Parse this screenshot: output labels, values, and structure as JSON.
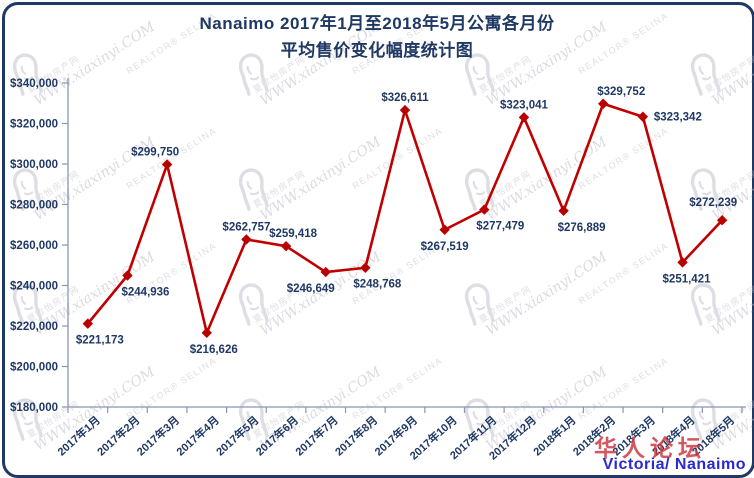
{
  "title": {
    "line1": "Nanaimo 2017年1月至2018年5月公寓各月份",
    "line2": "平均售价变化幅度统计图"
  },
  "chart_data": {
    "type": "line",
    "title": "Nanaimo 2017年1月至2018年5月公寓各月份 平均售价变化幅度统计图",
    "xlabel": "",
    "ylabel": "",
    "ylim": [
      180000,
      340000
    ],
    "y_tick_step": 20000,
    "y_tick_labels": [
      "$340,000",
      "$320,000",
      "$300,000",
      "$280,000",
      "$260,000",
      "$240,000",
      "$220,000",
      "$200,000",
      "$180,000"
    ],
    "grid": false,
    "legend_position": "none",
    "series_name": "平均售价",
    "categories": [
      "2017年1月",
      "2017年2月",
      "2017年3月",
      "2017年4月",
      "2017年5月",
      "2017年6月",
      "2017年7月",
      "2017年8月",
      "2017年9月",
      "2017年10月",
      "2017年11月",
      "2017年12月",
      "2018年1月",
      "2018年2月",
      "2018年3月",
      "2018年4月",
      "2018年5月"
    ],
    "values": [
      221173,
      244936,
      299750,
      216626,
      262757,
      259418,
      246649,
      248768,
      326611,
      267519,
      277479,
      323041,
      276889,
      329752,
      323342,
      251421,
      272239
    ],
    "point_labels": [
      "$221,173",
      "$244,936",
      "$299,750",
      "$216,626",
      "$262,757",
      "$259,418",
      "$246,649",
      "$248,768",
      "$326,611",
      "$267,519",
      "$277,479",
      "$323,041",
      "$276,889",
      "$329,752",
      "$323,342",
      "$251,421",
      "$272,239"
    ],
    "label_layout": [
      {
        "pos": "below",
        "dx": 12
      },
      {
        "pos": "below",
        "dx": 18
      },
      {
        "pos": "above",
        "dx": -12
      },
      {
        "pos": "below",
        "dx": 7
      },
      {
        "pos": "above",
        "dx": 0
      },
      {
        "pos": "above",
        "dx": 7
      },
      {
        "pos": "below",
        "dx": -15
      },
      {
        "pos": "below",
        "dx": 12
      },
      {
        "pos": "above",
        "dx": 0
      },
      {
        "pos": "below",
        "dx": 0
      },
      {
        "pos": "below",
        "dx": 16
      },
      {
        "pos": "above",
        "dx": 0
      },
      {
        "pos": "below",
        "dx": 18
      },
      {
        "pos": "above",
        "dx": 18
      },
      {
        "pos": "right",
        "dx": 0
      },
      {
        "pos": "below",
        "dx": 4
      },
      {
        "pos": "above",
        "dx": -9,
        "dy": -5
      }
    ]
  },
  "watermark": {
    "brand_cn": "夏欧怡房产网",
    "brand_url": "WWW.xiaxinyi.COM",
    "realtor": "REALTOR® SELINA"
  },
  "footer": {
    "forum": "华人论坛",
    "region": "Victoria/ Nanaimo"
  },
  "colors": {
    "series_line": "#C00000",
    "marker": "#B40000",
    "text_navy": "#1F3864",
    "axis_line": "#8A94B4",
    "watermark_gray": "#C3C3CE",
    "forum_red": "#CC3B44",
    "region_blue": "#2A2ACE",
    "border_navy": "#203864"
  }
}
